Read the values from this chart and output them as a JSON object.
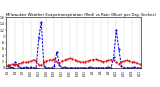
{
  "title": "Milwaukee Weather Evapotranspiration (Red) vs Rain (Blue) per Day (Inches)",
  "title_fontsize": 2.8,
  "background_color": "#ffffff",
  "grid_color": "#888888",
  "line_color_et": "#dd0000",
  "line_color_rain": "#0000ee",
  "ylim": [
    0,
    1.6
  ],
  "yticks": [
    0.0,
    0.2,
    0.4,
    0.6,
    0.8,
    1.0,
    1.2,
    1.4,
    1.6
  ],
  "ytick_labels": [
    "0",
    ".2",
    ".4",
    ".6",
    ".8",
    "1",
    "1.2",
    "1.4",
    "1.6"
  ],
  "n_days": 52,
  "rain": [
    0.05,
    0.02,
    0.0,
    0.18,
    0.05,
    0.01,
    0.0,
    0.03,
    0.0,
    0.02,
    0.0,
    0.0,
    0.95,
    1.45,
    0.05,
    0.0,
    0.0,
    0.0,
    0.05,
    0.5,
    0.1,
    0.0,
    0.02,
    0.0,
    0.0,
    0.0,
    0.0,
    0.0,
    0.0,
    0.0,
    0.0,
    0.0,
    0.03,
    0.0,
    0.0,
    0.01,
    0.0,
    0.0,
    0.0,
    0.02,
    0.0,
    0.35,
    1.2,
    0.6,
    0.05,
    0.0,
    0.0,
    0.0,
    0.0,
    0.02,
    0.0,
    0.0
  ],
  "et": [
    0.08,
    0.1,
    0.12,
    0.1,
    0.12,
    0.15,
    0.18,
    0.17,
    0.2,
    0.22,
    0.25,
    0.23,
    0.1,
    0.08,
    0.18,
    0.22,
    0.24,
    0.26,
    0.28,
    0.2,
    0.15,
    0.22,
    0.25,
    0.28,
    0.3,
    0.28,
    0.26,
    0.22,
    0.2,
    0.18,
    0.2,
    0.22,
    0.24,
    0.26,
    0.28,
    0.25,
    0.22,
    0.2,
    0.22,
    0.24,
    0.26,
    0.25,
    0.18,
    0.12,
    0.18,
    0.22,
    0.24,
    0.22,
    0.2,
    0.18,
    0.15,
    0.12
  ],
  "xtick_labels": [
    "5/1",
    "5/4",
    "5/7",
    "5/10",
    "5/13",
    "5/16",
    "5/19",
    "5/22",
    "5/25",
    "5/28",
    "5/31",
    "6/3",
    "6/6",
    "6/9",
    "6/12",
    "6/15",
    "6/18",
    "6/21"
  ],
  "xtick_positions": [
    0,
    3,
    6,
    9,
    12,
    15,
    18,
    21,
    24,
    27,
    30,
    33,
    36,
    39,
    42,
    45,
    48,
    51
  ]
}
